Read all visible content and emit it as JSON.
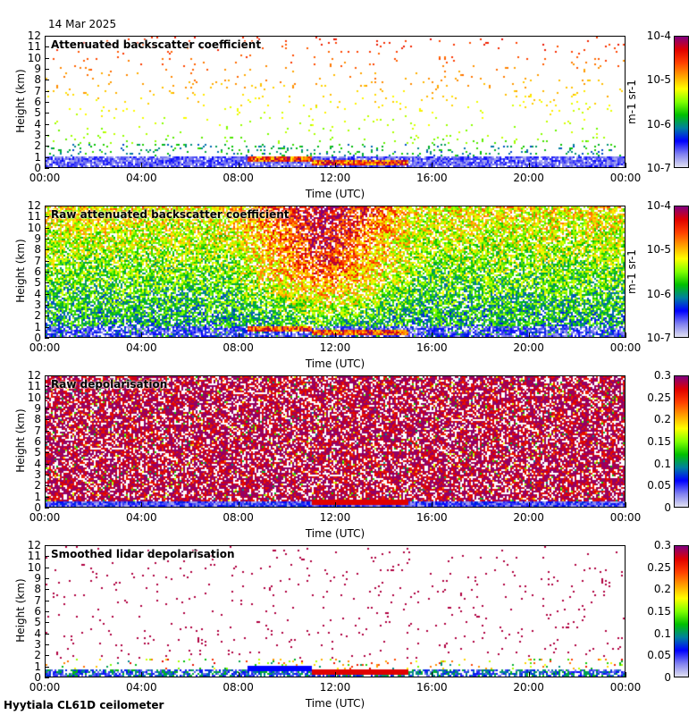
{
  "header": {
    "date": "14 Mar 2025"
  },
  "footer": {
    "site": "Hyytiala CL61D ceilometer"
  },
  "colors": {
    "colormap": [
      "#e0e0f0",
      "#8080f0",
      "#0000ff",
      "#0080a0",
      "#00c000",
      "#80ff00",
      "#ffff00",
      "#ffa000",
      "#ff4000",
      "#e00000",
      "#800080"
    ]
  },
  "chart_data": [
    {
      "type": "heatmap",
      "title": "Attenuated backscatter coefficient",
      "xlabel": "Time (UTC)",
      "ylabel": "Height (km)",
      "xticks": [
        "00:00",
        "04:00",
        "08:00",
        "12:00",
        "16:00",
        "20:00",
        "00:00"
      ],
      "yticks": [
        "0",
        "1",
        "2",
        "3",
        "4",
        "5",
        "6",
        "7",
        "8",
        "9",
        "10",
        "11",
        "12"
      ],
      "ylim": [
        0,
        12
      ],
      "colorbar": {
        "scale": "log",
        "ticks": [
          "10-7",
          "10-6",
          "10-5",
          "10-4"
        ],
        "range": [
          1e-07,
          0.0001
        ],
        "unit": "m-1 sr-1"
      },
      "features": {
        "cloud_base_km": 0.6,
        "cloud_start": "08:00",
        "cloud_end": "15:00",
        "boundary_layer_top_km": 1.0
      }
    },
    {
      "type": "heatmap",
      "title": "Raw attenuated backscatter coefficient",
      "xlabel": "Time (UTC)",
      "ylabel": "Height (km)",
      "xticks": [
        "00:00",
        "04:00",
        "08:00",
        "12:00",
        "16:00",
        "20:00",
        "00:00"
      ],
      "yticks": [
        "0",
        "1",
        "2",
        "3",
        "4",
        "5",
        "6",
        "7",
        "8",
        "9",
        "10",
        "11",
        "12"
      ],
      "ylim": [
        0,
        12
      ],
      "colorbar": {
        "scale": "log",
        "ticks": [
          "10-7",
          "10-6",
          "10-5",
          "10-4"
        ],
        "range": [
          1e-07,
          0.0001
        ],
        "unit": "m-1 sr-1"
      }
    },
    {
      "type": "heatmap",
      "title": "Raw depolarisation",
      "xlabel": "Time (UTC)",
      "ylabel": "Height (km)",
      "xticks": [
        "00:00",
        "04:00",
        "08:00",
        "12:00",
        "16:00",
        "20:00",
        "00:00"
      ],
      "yticks": [
        "0",
        "1",
        "2",
        "3",
        "4",
        "5",
        "6",
        "7",
        "8",
        "9",
        "10",
        "11",
        "12"
      ],
      "ylim": [
        0,
        12
      ],
      "colorbar": {
        "scale": "linear",
        "ticks": [
          "0",
          "0.05",
          "0.1",
          "0.15",
          "0.2",
          "0.25",
          "0.3"
        ],
        "range": [
          0,
          0.3
        ]
      }
    },
    {
      "type": "heatmap",
      "title": "Smoothed lidar depolarisation",
      "xlabel": "Time (UTC)",
      "ylabel": "Height (km)",
      "xticks": [
        "00:00",
        "04:00",
        "08:00",
        "12:00",
        "16:00",
        "20:00",
        "00:00"
      ],
      "yticks": [
        "0",
        "1",
        "2",
        "3",
        "4",
        "5",
        "6",
        "7",
        "8",
        "9",
        "10",
        "11",
        "12"
      ],
      "ylim": [
        0,
        12
      ],
      "colorbar": {
        "scale": "linear",
        "ticks": [
          "0",
          "0.05",
          "0.1",
          "0.15",
          "0.2",
          "0.25",
          "0.3"
        ],
        "range": [
          0,
          0.3
        ]
      }
    }
  ]
}
